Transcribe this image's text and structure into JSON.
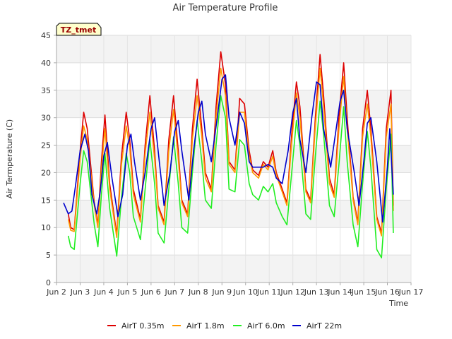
{
  "chart_data": {
    "type": "line",
    "title": "Air Temperature Profile",
    "xlabel": "Time",
    "ylabel": "Air Termperature (C)",
    "badge": "TZ_tmet",
    "x_ticks": [
      "Jun 2",
      "Jun 3",
      "Jun 4",
      "Jun 5",
      "Jun 6",
      "Jun 7",
      "Jun 8",
      "Jun 9",
      "Jun 10",
      "Jun 11",
      "Jun 12",
      "Jun 13",
      "Jun 14",
      "Jun 15",
      "Jun 16",
      "Jun 17"
    ],
    "x_tick_values": [
      2,
      3,
      4,
      5,
      6,
      7,
      8,
      9,
      10,
      11,
      12,
      13,
      14,
      15,
      16,
      17
    ],
    "xlim": [
      2,
      17
    ],
    "ylim": [
      0,
      45
    ],
    "y_ticks": [
      0,
      5,
      10,
      15,
      20,
      25,
      30,
      35,
      40,
      45
    ],
    "grid": true,
    "legend_position": "bottom",
    "series": [
      {
        "name": "AirT 0.35m",
        "color": "#dd0000",
        "x": [
          2.5,
          2.6,
          2.75,
          3.0,
          3.15,
          3.3,
          3.6,
          3.75,
          3.9,
          4.05,
          4.25,
          4.55,
          4.75,
          4.95,
          5.1,
          5.25,
          5.55,
          5.75,
          5.95,
          6.15,
          6.3,
          6.55,
          6.75,
          6.95,
          7.15,
          7.3,
          7.55,
          7.75,
          7.95,
          8.15,
          8.3,
          8.55,
          8.75,
          8.95,
          9.15,
          9.3,
          9.55,
          9.75,
          9.95,
          10.15,
          10.3,
          10.55,
          10.75,
          10.95,
          11.15,
          11.3,
          11.55,
          11.75,
          11.95,
          12.15,
          12.3,
          12.55,
          12.75,
          12.95,
          13.15,
          13.3,
          13.55,
          13.75,
          13.95,
          14.15,
          14.3,
          14.55,
          14.75,
          14.95,
          15.15,
          15.3,
          15.55,
          15.75,
          15.95,
          16.15,
          16.25
        ],
        "y": [
          12.5,
          10.0,
          9.6,
          24.0,
          31.0,
          28.0,
          14.5,
          10.5,
          22.0,
          30.5,
          18.0,
          8.7,
          23.0,
          31.0,
          26.0,
          17.0,
          11.5,
          25.0,
          34.0,
          24.0,
          14.0,
          11.0,
          26.0,
          34.0,
          24.0,
          15.0,
          12.5,
          28.0,
          37.0,
          28.0,
          20.0,
          17.0,
          32.0,
          42.0,
          36.0,
          22.0,
          20.5,
          33.5,
          32.5,
          24.0,
          20.5,
          19.5,
          22.0,
          21.0,
          24.0,
          20.0,
          17.0,
          14.5,
          27.0,
          36.5,
          32.0,
          17.0,
          15.0,
          30.0,
          41.5,
          34.0,
          19.0,
          16.0,
          30.0,
          40.0,
          30.0,
          15.5,
          11.0,
          28.0,
          35.0,
          28.0,
          12.0,
          9.0,
          28.0,
          35.0,
          14.0
        ]
      },
      {
        "name": "AirT 1.8m",
        "color": "#ff9900",
        "x": [
          2.5,
          2.6,
          2.75,
          3.0,
          3.15,
          3.3,
          3.6,
          3.75,
          3.9,
          4.05,
          4.25,
          4.55,
          4.75,
          4.95,
          5.1,
          5.25,
          5.55,
          5.75,
          5.95,
          6.15,
          6.3,
          6.55,
          6.75,
          6.95,
          7.15,
          7.3,
          7.55,
          7.75,
          7.95,
          8.15,
          8.3,
          8.55,
          8.75,
          8.95,
          9.15,
          9.3,
          9.55,
          9.75,
          9.95,
          10.15,
          10.3,
          10.55,
          10.75,
          10.95,
          11.15,
          11.3,
          11.55,
          11.75,
          11.95,
          12.15,
          12.3,
          12.55,
          12.75,
          12.95,
          13.15,
          13.3,
          13.55,
          13.75,
          13.95,
          14.15,
          14.3,
          14.55,
          14.75,
          14.95,
          15.15,
          15.3,
          15.55,
          15.75,
          15.95,
          16.15,
          16.25
        ],
        "y": [
          11.5,
          9.5,
          9.3,
          22.5,
          28.5,
          26.0,
          14.0,
          10.0,
          20.5,
          28.0,
          17.0,
          8.2,
          21.5,
          28.5,
          24.5,
          16.0,
          11.0,
          23.5,
          31.0,
          22.5,
          13.5,
          10.5,
          24.0,
          31.5,
          22.5,
          14.5,
          12.0,
          26.0,
          34.0,
          26.5,
          19.0,
          16.5,
          30.0,
          39.0,
          34.0,
          21.5,
          20.0,
          31.0,
          31.0,
          23.0,
          20.0,
          19.0,
          21.5,
          20.5,
          23.0,
          19.5,
          16.5,
          14.0,
          25.5,
          34.5,
          30.0,
          16.5,
          14.5,
          28.5,
          39.0,
          32.0,
          18.0,
          15.5,
          28.0,
          37.5,
          28.0,
          15.0,
          10.5,
          26.5,
          32.5,
          26.5,
          11.5,
          8.5,
          26.5,
          32.5,
          13.0
        ]
      },
      {
        "name": "AirT 6.0m",
        "color": "#22ee22",
        "x": [
          2.5,
          2.6,
          2.75,
          3.0,
          3.15,
          3.3,
          3.6,
          3.75,
          3.9,
          4.05,
          4.25,
          4.55,
          4.75,
          4.95,
          5.1,
          5.25,
          5.55,
          5.75,
          5.95,
          6.15,
          6.3,
          6.55,
          6.75,
          6.95,
          7.15,
          7.3,
          7.55,
          7.75,
          7.95,
          8.15,
          8.3,
          8.55,
          8.75,
          8.95,
          9.15,
          9.3,
          9.55,
          9.75,
          9.95,
          10.15,
          10.3,
          10.55,
          10.75,
          10.95,
          11.15,
          11.3,
          11.55,
          11.75,
          11.95,
          12.15,
          12.3,
          12.55,
          12.75,
          12.95,
          13.15,
          13.3,
          13.55,
          13.75,
          13.95,
          14.15,
          14.3,
          14.55,
          14.75,
          14.95,
          15.15,
          15.3,
          15.55,
          15.75,
          15.95,
          16.15,
          16.25
        ],
        "y": [
          8.5,
          6.5,
          6.0,
          18.0,
          24.0,
          22.0,
          10.5,
          6.5,
          16.0,
          23.5,
          13.5,
          4.8,
          15.5,
          23.5,
          20.0,
          12.0,
          7.8,
          17.0,
          26.0,
          18.0,
          9.0,
          7.2,
          17.0,
          26.5,
          18.0,
          10.0,
          9.0,
          20.0,
          29.5,
          22.0,
          15.0,
          13.5,
          25.0,
          34.0,
          30.0,
          17.0,
          16.5,
          26.0,
          25.0,
          18.0,
          16.0,
          15.0,
          17.5,
          16.5,
          18.0,
          14.5,
          12.0,
          10.5,
          20.0,
          29.5,
          25.0,
          12.5,
          11.5,
          23.0,
          33.0,
          27.0,
          14.0,
          12.0,
          21.5,
          32.0,
          22.0,
          10.5,
          6.5,
          18.0,
          27.5,
          21.0,
          6.0,
          4.5,
          17.0,
          27.0,
          9.0
        ]
      },
      {
        "name": "AirT 22m",
        "color": "#0000cc",
        "x": [
          2.3,
          2.5,
          2.65,
          2.8,
          3.0,
          3.2,
          3.35,
          3.5,
          3.7,
          3.85,
          4.0,
          4.15,
          4.35,
          4.6,
          4.8,
          5.0,
          5.15,
          5.3,
          5.55,
          5.75,
          6.0,
          6.15,
          6.3,
          6.55,
          6.8,
          7.0,
          7.15,
          7.3,
          7.6,
          7.8,
          8.0,
          8.15,
          8.3,
          8.55,
          8.8,
          9.0,
          9.15,
          9.3,
          9.55,
          9.75,
          9.95,
          10.15,
          10.3,
          10.55,
          10.75,
          10.95,
          11.15,
          11.3,
          11.55,
          11.8,
          12.0,
          12.15,
          12.3,
          12.55,
          12.8,
          13.0,
          13.15,
          13.3,
          13.6,
          13.8,
          14.0,
          14.15,
          14.3,
          14.6,
          14.8,
          15.0,
          15.15,
          15.3,
          15.55,
          15.8,
          16.0,
          16.1,
          16.25
        ],
        "y": [
          14.5,
          12.5,
          13.0,
          17.5,
          24.0,
          27.0,
          24.0,
          16.0,
          12.5,
          16.5,
          23.0,
          25.5,
          19.0,
          12.0,
          16.0,
          25.0,
          27.0,
          22.0,
          15.0,
          20.0,
          28.0,
          30.0,
          24.0,
          14.0,
          20.0,
          27.5,
          29.5,
          24.0,
          15.0,
          24.0,
          31.0,
          33.0,
          27.0,
          22.0,
          30.0,
          37.0,
          37.8,
          30.0,
          25.0,
          31.0,
          29.0,
          22.0,
          21.0,
          21.0,
          21.0,
          21.5,
          21.0,
          19.0,
          18.0,
          24.0,
          31.0,
          33.5,
          26.0,
          20.0,
          30.0,
          36.5,
          36.0,
          28.0,
          21.0,
          27.0,
          33.0,
          35.0,
          28.0,
          20.0,
          14.0,
          22.0,
          29.0,
          30.0,
          22.0,
          11.0,
          21.0,
          28.0,
          16.0
        ]
      }
    ]
  }
}
